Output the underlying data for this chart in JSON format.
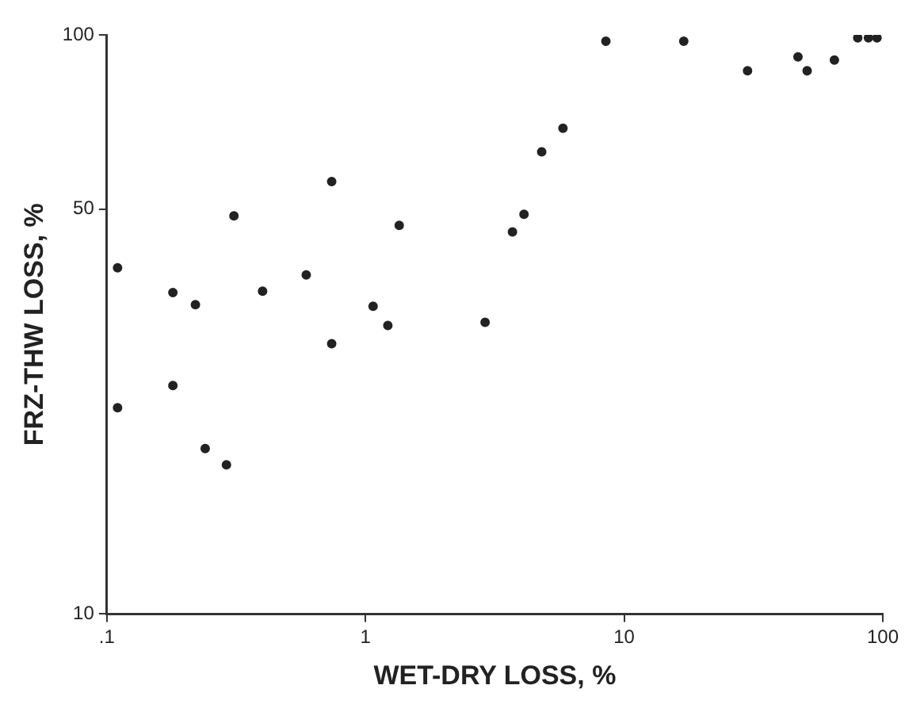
{
  "chart_data": {
    "type": "scatter",
    "xlabel": "WET-DRY LOSS, %",
    "ylabel": "FRZ-THW LOSS, %",
    "log": "xy",
    "grid": false,
    "marker": "circle",
    "legend": false,
    "xlim": [
      0.1,
      100
    ],
    "xticks": [
      {
        "value": 0.1,
        "label": ".1"
      },
      1,
      10,
      100
    ],
    "ylim": [
      10,
      100
    ],
    "yticks": [
      10,
      50,
      100
    ],
    "series": [
      {
        "color": "#222222",
        "x": [
          0.11,
          0.11,
          0.18,
          0.18,
          0.22,
          0.24,
          0.29,
          0.31,
          0.4,
          0.59,
          0.74,
          0.74,
          1.07,
          1.22,
          1.35,
          2.9,
          3.7,
          4.1,
          4.8,
          5.8,
          8.5,
          17,
          30,
          47,
          51,
          65,
          80,
          88,
          95
        ],
        "values": [
          39.6,
          22.7,
          35.9,
          24.8,
          34.2,
          19.3,
          18.1,
          48.7,
          36.1,
          38.5,
          55.8,
          29.3,
          34.0,
          31.5,
          46.9,
          31.9,
          45.7,
          49,
          62.8,
          69,
          97.5,
          97.5,
          86.7,
          91.6,
          86.7,
          90.5,
          98.8,
          98.8,
          98.8
        ]
      }
    ]
  }
}
